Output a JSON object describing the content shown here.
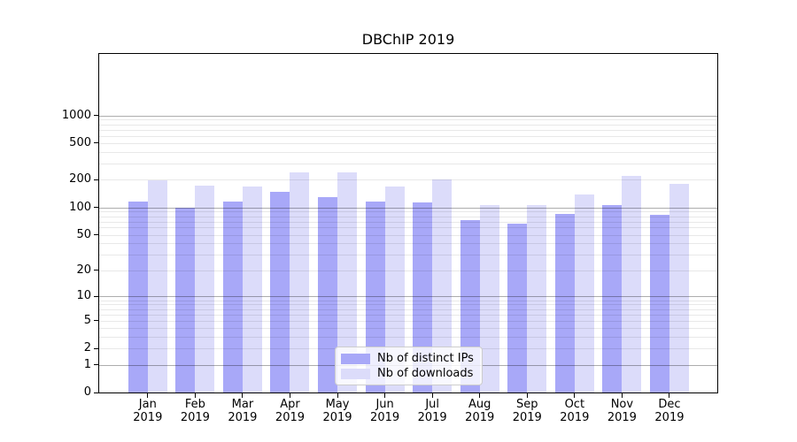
{
  "chart_data": {
    "type": "bar",
    "title": "DBChIP 2019",
    "categories": [
      "Jan 2019",
      "Feb 2019",
      "Mar 2019",
      "Apr 2019",
      "May 2019",
      "Jun 2019",
      "Jul 2019",
      "Aug 2019",
      "Sep 2019",
      "Oct 2019",
      "Nov 2019",
      "Dec 2019"
    ],
    "series": [
      {
        "name": "Nb of distinct IPs",
        "color": "#a8a8f8",
        "values": [
          117,
          100,
          117,
          147,
          130,
          116,
          113,
          73,
          67,
          85,
          106,
          82
        ]
      },
      {
        "name": "Nb of downloads",
        "color": "#dcdcfa",
        "values": [
          196,
          173,
          169,
          240,
          240,
          168,
          200,
          106,
          107,
          139,
          220,
          181
        ]
      }
    ],
    "xlabel": "",
    "ylabel": "",
    "y_scale": "log10(1+x)",
    "y_ticks": [
      0,
      1,
      2,
      5,
      10,
      20,
      50,
      100,
      200,
      500,
      1000
    ],
    "y_major_gridlines": [
      1,
      10,
      100,
      1000
    ],
    "ylim": [
      0,
      1260
    ],
    "grid": true,
    "grid_above_bars": true,
    "legend_position": "lower center",
    "colors": {
      "axis": "#000000",
      "major_grid": "#b0b0b0",
      "minor_grid": "#e8e8e8"
    }
  }
}
